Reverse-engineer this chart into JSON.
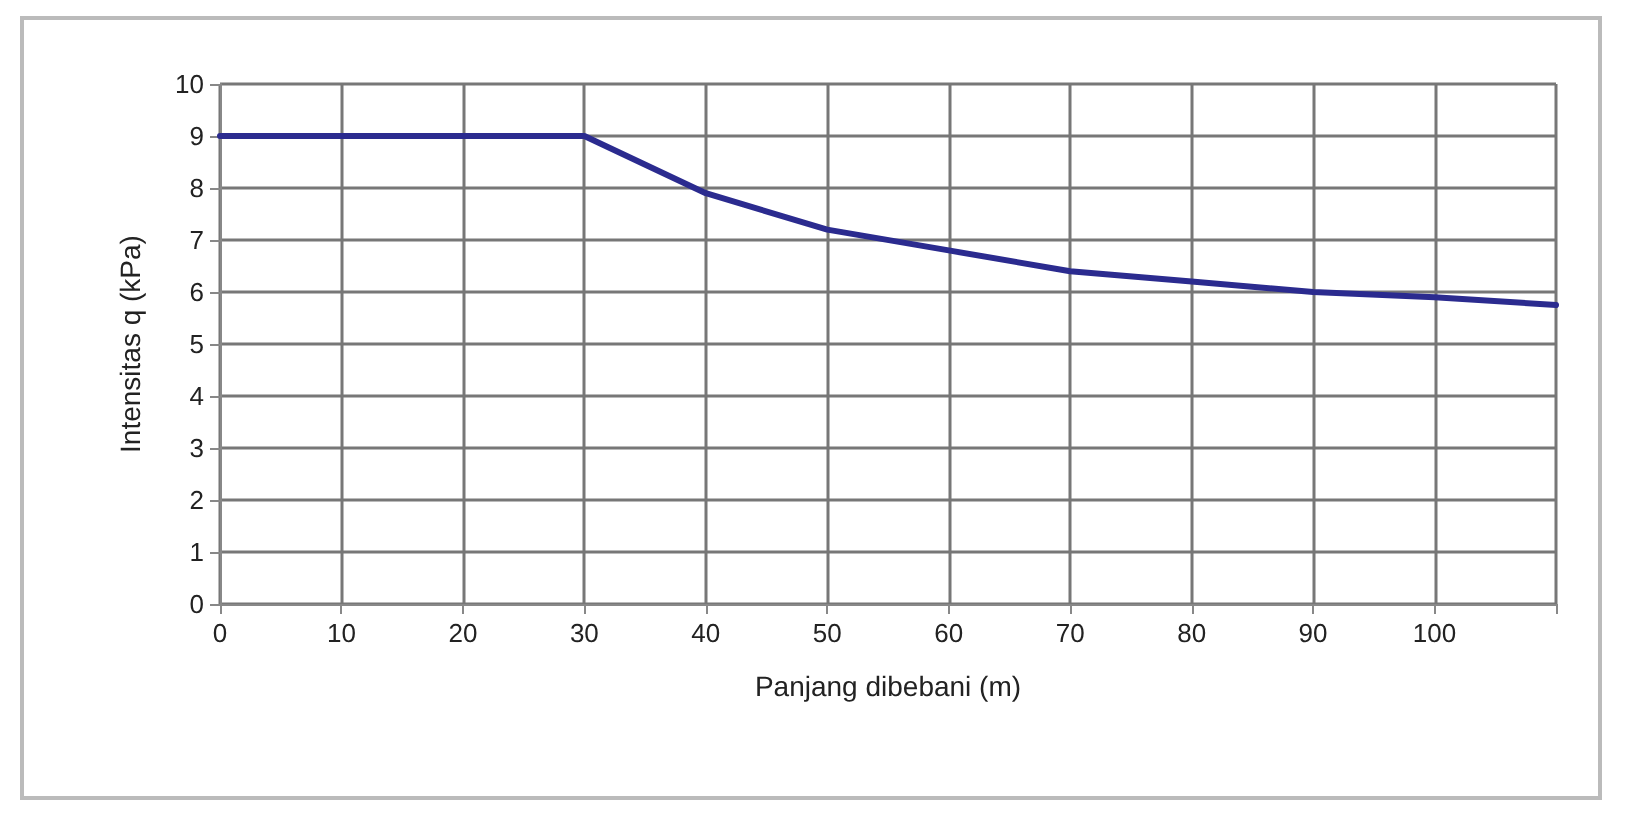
{
  "chart_data": {
    "type": "line",
    "xlabel": "Panjang dibebani (m)",
    "ylabel": "Intensitas q (kPa)",
    "x": [
      0,
      10,
      20,
      30,
      40,
      50,
      60,
      70,
      80,
      90,
      100,
      110
    ],
    "series": [
      {
        "color": "#2b2b8f",
        "values": [
          9,
          9,
          9,
          9,
          7.9,
          7.2,
          6.8,
          6.4,
          6.2,
          6.0,
          5.9,
          5.75
        ]
      }
    ],
    "xlim": [
      0,
      110
    ],
    "ylim": [
      0,
      10
    ],
    "xticks": [
      0,
      10,
      20,
      30,
      40,
      50,
      60,
      70,
      80,
      90,
      100,
      {
        "value": 110,
        "label": null
      }
    ],
    "yticks": [
      0,
      1,
      2,
      3,
      4,
      5,
      6,
      7,
      8,
      9,
      10
    ],
    "grid": true,
    "marker": "none",
    "line_style": "solid"
  }
}
